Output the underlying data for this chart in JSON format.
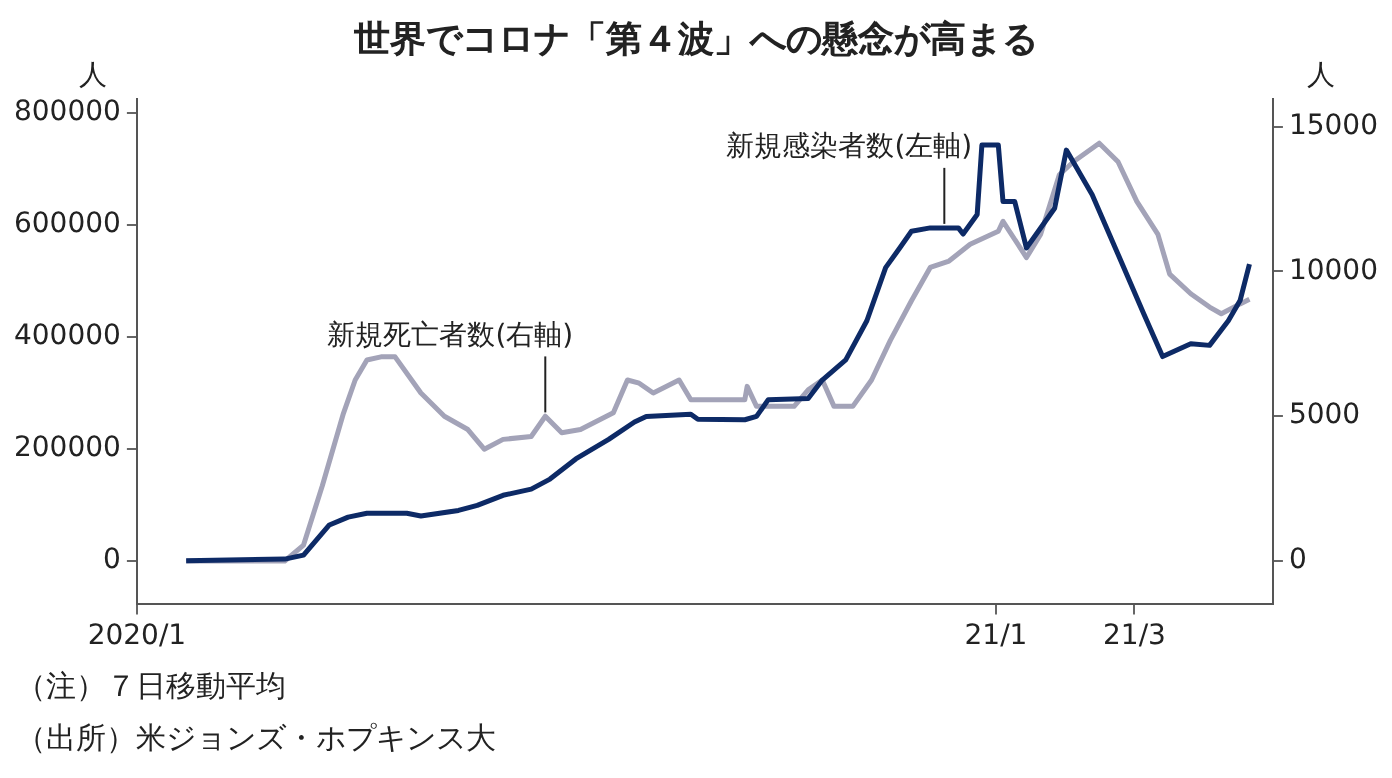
{
  "chart_data": {
    "type": "line",
    "title": "世界でコロナ「第４波」への懸念が高まる",
    "ylabel": "人",
    "y2label": "人",
    "xlim": [
      "2020-01-01",
      "2021-04-29"
    ],
    "xticks": [
      {
        "value": "2020-01-01",
        "label": "2020/1"
      },
      {
        "value": "2021-01-01",
        "label": "21/1"
      },
      {
        "value": "2021-03-01",
        "label": "21/3"
      }
    ],
    "ylim": [
      -78000,
      825000
    ],
    "yticks": [
      0,
      200000,
      400000,
      600000,
      800000
    ],
    "y2lim": [
      -1500,
      15950
    ],
    "y2ticks": [
      0,
      5000,
      10000,
      15000
    ],
    "grid": false,
    "legend": false,
    "marker": "none",
    "line_style": "solid",
    "series": [
      {
        "color": "#0d2a66",
        "x": [
          "2020-01-22",
          "2020-03-04",
          "2020-03-12",
          "2020-03-23",
          "2020-03-31",
          "2020-04-08",
          "2020-04-25",
          "2020-05-01",
          "2020-05-17",
          "2020-05-25",
          "2020-06-05",
          "2020-06-17",
          "2020-06-25",
          "2020-07-06",
          "2020-07-20",
          "2020-07-31",
          "2020-08-05",
          "2020-08-24",
          "2020-08-27",
          "2020-09-16",
          "2020-09-21",
          "2020-09-26",
          "2020-10-13",
          "2020-10-19",
          "2020-10-29",
          "2020-11-07",
          "2020-11-15",
          "2020-11-21",
          "2020-11-26",
          "2020-12-04",
          "2020-12-16",
          "2020-12-18",
          "2020-12-24",
          "2020-12-26",
          "2021-01-02",
          "2021-01-04",
          "2021-01-09",
          "2021-01-14",
          "2021-01-26",
          "2021-01-31",
          "2021-02-11",
          "2021-02-22",
          "2021-03-05",
          "2021-03-13",
          "2021-03-25",
          "2021-04-02",
          "2021-04-10",
          "2021-04-15",
          "2021-04-19"
        ],
        "values": [
          0,
          3000,
          10000,
          64000,
          78000,
          85000,
          85000,
          80000,
          90000,
          99000,
          117000,
          128000,
          146000,
          182000,
          217000,
          248000,
          258000,
          262000,
          253000,
          252000,
          258000,
          288000,
          290000,
          323000,
          359000,
          429000,
          524000,
          559000,
          589000,
          595000,
          595000,
          584000,
          619000,
          743000,
          743000,
          642000,
          642000,
          559000,
          630000,
          734000,
          654000,
          548000,
          441000,
          365000,
          388000,
          385000,
          429000,
          465000,
          530000
        ]
      },
      {
        "color": "#a3a3b8",
        "axis": "y2",
        "x": [
          "2020-01-22",
          "2020-03-04",
          "2020-03-12",
          "2020-03-20",
          "2020-03-29",
          "2020-04-03",
          "2020-04-08",
          "2020-04-14",
          "2020-04-20",
          "2020-05-01",
          "2020-05-11",
          "2020-05-21",
          "2020-05-28",
          "2020-06-05",
          "2020-06-17",
          "2020-06-23",
          "2020-06-30",
          "2020-07-08",
          "2020-07-22",
          "2020-07-28",
          "2020-08-02",
          "2020-08-08",
          "2020-08-19",
          "2020-08-24",
          "2020-09-16",
          "2020-09-17",
          "2020-09-21",
          "2020-10-07",
          "2020-10-13",
          "2020-10-19",
          "2020-10-24",
          "2020-11-01",
          "2020-11-09",
          "2020-11-17",
          "2020-11-26",
          "2020-12-04",
          "2020-12-12",
          "2020-12-21",
          "2021-01-02",
          "2021-01-04",
          "2021-01-14",
          "2021-01-20",
          "2021-01-28",
          "2021-02-03",
          "2021-02-14",
          "2021-02-22",
          "2021-03-02",
          "2021-03-11",
          "2021-03-16",
          "2021-03-25",
          "2021-04-02",
          "2021-04-07",
          "2021-04-15",
          "2021-04-19"
        ],
        "values": [
          0,
          0,
          550,
          2600,
          5100,
          6250,
          6940,
          7050,
          7050,
          5800,
          5000,
          4540,
          3860,
          4200,
          4300,
          5000,
          4430,
          4540,
          5120,
          6250,
          6140,
          5800,
          6250,
          5570,
          5570,
          6030,
          5340,
          5340,
          5910,
          6250,
          5340,
          5340,
          6250,
          7620,
          8990,
          10140,
          10360,
          10940,
          11390,
          11730,
          10480,
          11280,
          13340,
          13790,
          14430,
          13790,
          12420,
          11280,
          9910,
          9230,
          8770,
          8540,
          8880,
          9040
        ]
      }
    ],
    "annotations": [
      {
        "text": "新規感染者数(左軸)",
        "x": "2020-12-10",
        "y": 595000
      },
      {
        "text": "新規死亡者数(右軸)",
        "x": "2020-06-23",
        "y": 258000
      },
      "（注）７日移動平均",
      "（出所）米ジョンズ・ホプキンス大"
    ]
  }
}
